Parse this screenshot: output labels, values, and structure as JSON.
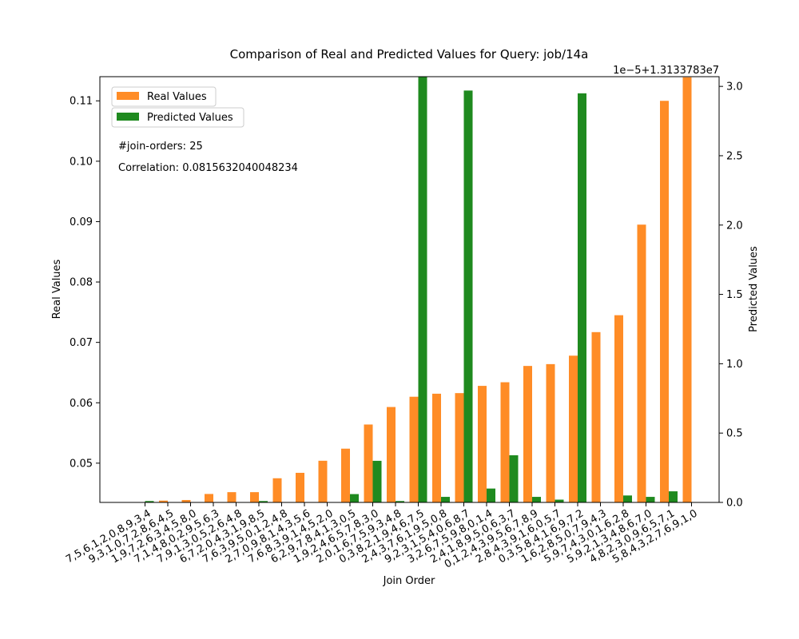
{
  "chart_data": {
    "type": "bar",
    "title": "Comparison of Real and Predicted Values for Query: job/14a",
    "xlabel": "Join Order",
    "ylabel_left": "Real Values",
    "ylabel_right": "Predicted Values",
    "right_axis_offset_text": "1e−5+1.3133783e7",
    "annotations": [
      "#join-orders: 25",
      "Correlation: 0.0815632040048234"
    ],
    "legend_position": "top-left",
    "grid": false,
    "categories": [
      "7,5,6,1,2,0,8,9,3,4",
      "9,3,1,0,7,2,8,6,4,5",
      "1,9,7,2,6,3,4,5,8,0",
      "7,1,4,8,0,2,9,5,6,3",
      "7,9,1,3,0,5,2,6,4,8",
      "6,7,2,0,4,3,1,9,8,5",
      "7,6,3,9,5,0,1,2,4,8",
      "2,7,0,9,8,1,4,3,5,6",
      "7,6,8,3,9,1,4,5,2,0",
      "6,2,9,7,8,4,1,3,0,5",
      "1,9,2,4,6,5,7,8,3,0",
      "2,0,1,6,7,5,9,3,4,8",
      "0,3,8,2,1,9,4,6,7,5",
      "2,4,3,7,6,1,9,5,0,8",
      "9,2,3,1,5,4,0,6,8,7",
      "3,2,6,7,5,9,8,0,1,4",
      "2,4,1,8,9,5,0,6,3,7",
      "0,1,2,4,3,9,5,6,7,8,9",
      "2,8,4,3,9,1,6,0,5,7",
      "0,3,5,8,4,1,6,9,7,2",
      "1,6,2,8,5,0,7,9,4,3",
      "5,9,7,4,3,0,1,6,2,8",
      "5,9,2,1,3,4,8,6,7,0",
      "4,8,2,3,0,9,6,5,7,1",
      "5,8,4,3,2,7,6,9,1,0"
    ],
    "series": [
      {
        "name": "Real Values",
        "axis": "left",
        "color": "#ff8c26",
        "values": [
          0.0433,
          0.0438,
          0.0439,
          0.0449,
          0.0452,
          0.0452,
          0.0475,
          0.0484,
          0.0504,
          0.0524,
          0.0564,
          0.0593,
          0.061,
          0.0615,
          0.0616,
          0.0628,
          0.0634,
          0.0661,
          0.0664,
          0.0678,
          0.0717,
          0.0745,
          0.0895,
          0.11,
          0.1139
        ]
      },
      {
        "name": "Predicted Values",
        "axis": "right",
        "color": "#1f8a1f",
        "values": [
          0.01,
          0.0,
          0.0,
          0.0,
          0.0,
          0.01,
          0.0,
          0.0,
          0.0,
          0.06,
          0.3,
          0.01,
          3.07,
          0.04,
          2.97,
          0.1,
          0.34,
          0.04,
          0.02,
          2.95,
          0.0,
          0.05,
          0.04,
          0.08,
          0.0
        ]
      }
    ],
    "ylim_left": [
      0.0435,
      0.114
    ],
    "yticks_left": [
      "0.05",
      "0.06",
      "0.07",
      "0.08",
      "0.09",
      "0.10",
      "0.11"
    ],
    "ytick_values_left": [
      0.05,
      0.06,
      0.07,
      0.08,
      0.09,
      0.1,
      0.11
    ],
    "ylim_right": [
      0.0,
      3.07
    ],
    "yticks_right": [
      "0.0",
      "0.5",
      "1.0",
      "1.5",
      "2.0",
      "2.5",
      "3.0"
    ],
    "ytick_values_right": [
      0.0,
      0.5,
      1.0,
      1.5,
      2.0,
      2.5,
      3.0
    ]
  }
}
